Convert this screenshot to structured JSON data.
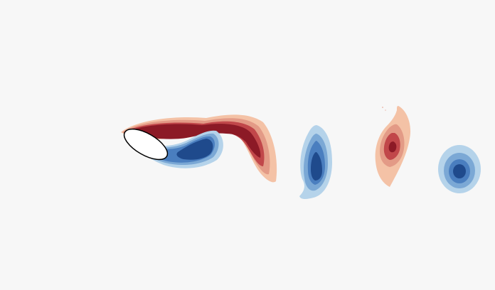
{
  "figure": {
    "description_visible_text": "",
    "background_color": "#f7f7f7",
    "colors": {
      "red_1": "#f4c2a6",
      "red_2": "#e39a86",
      "red_3": "#c1474a",
      "red_4": "#8c1a26",
      "blue_1": "#b5d3ea",
      "blue_2": "#7ba8d5",
      "blue_3": "#4a7ebf",
      "blue_4": "#1f4a8c",
      "body_fill": "#ffffff",
      "body_stroke": "#000000"
    }
  }
}
